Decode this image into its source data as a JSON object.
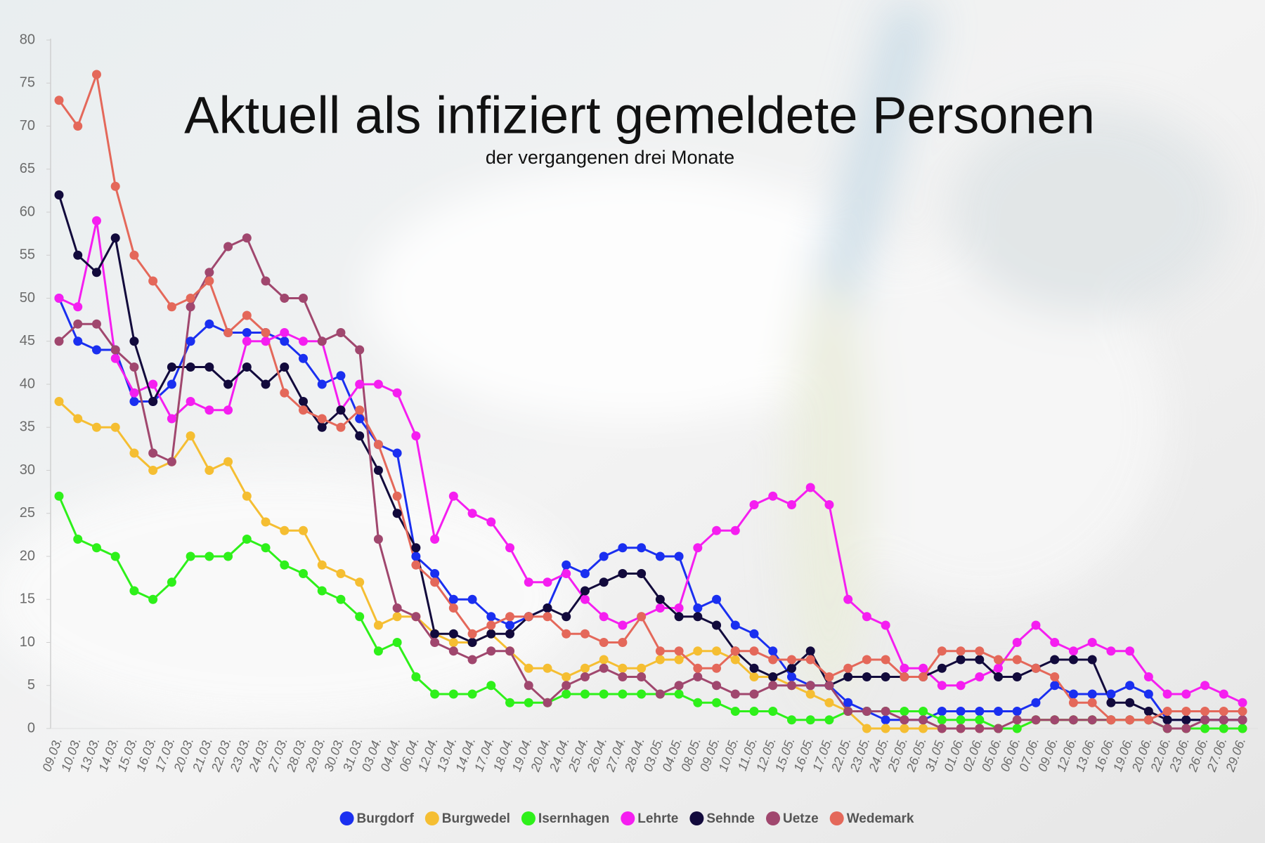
{
  "chart_data": {
    "type": "line",
    "title": "Aktuell als infiziert gemeldete Personen",
    "subtitle": "der vergangenen drei Monate",
    "categories": [
      "09.03.",
      "10.03.",
      "13.03.",
      "14.03.",
      "15.03.",
      "16.03.",
      "17.03.",
      "20.03.",
      "21.03.",
      "22.03.",
      "23.03.",
      "24.03.",
      "27.03.",
      "28.03.",
      "29.03.",
      "30.03.",
      "31.03.",
      "03.04.",
      "04.04.",
      "06.04.",
      "12.04.",
      "13.04.",
      "14.04.",
      "17.04.",
      "18.04.",
      "19.04.",
      "20.04.",
      "24.04.",
      "25.04.",
      "26.04.",
      "27.04.",
      "28.04.",
      "03.05.",
      "04.05.",
      "08.05.",
      "09.05.",
      "10.05.",
      "11.05.",
      "12.05.",
      "15.05.",
      "16.05.",
      "17.05.",
      "22.05.",
      "23.05.",
      "24.05.",
      "25.05.",
      "26.05.",
      "31.05.",
      "01.06.",
      "02.06.",
      "05.06.",
      "06.06.",
      "07.06.",
      "09.06.",
      "12.06.",
      "13.06.",
      "16.06.",
      "19.06.",
      "20.06.",
      "22.06.",
      "23.06.",
      "26.06.",
      "27.06.",
      "29.06."
    ],
    "series": [
      {
        "name": "Burgdorf",
        "color": "#1a2ff0",
        "values": [
          50,
          45,
          44,
          44,
          38,
          38,
          40,
          45,
          47,
          46,
          46,
          46,
          45,
          43,
          40,
          41,
          36,
          33,
          32,
          20,
          18,
          15,
          15,
          13,
          12,
          13,
          14,
          19,
          18,
          20,
          21,
          21,
          20,
          20,
          14,
          15,
          12,
          11,
          9,
          6,
          5,
          5,
          3,
          2,
          1,
          1,
          1,
          2,
          2,
          2,
          2,
          2,
          3,
          5,
          4,
          4,
          4,
          5,
          4,
          1,
          1,
          1,
          1,
          1
        ]
      },
      {
        "name": "Burgwedel",
        "color": "#f5be32",
        "values": [
          38,
          36,
          35,
          35,
          32,
          30,
          31,
          34,
          30,
          31,
          27,
          24,
          23,
          23,
          19,
          18,
          17,
          12,
          13,
          13,
          11,
          10,
          10,
          11,
          9,
          7,
          7,
          6,
          7,
          8,
          7,
          7,
          8,
          8,
          9,
          9,
          8,
          6,
          6,
          5,
          4,
          3,
          2,
          0,
          0,
          0,
          0,
          0,
          0,
          0,
          0,
          0,
          1,
          1,
          1,
          1,
          1,
          1,
          1,
          0,
          0,
          0,
          0,
          0
        ]
      },
      {
        "name": "Isernhagen",
        "color": "#2ef01a",
        "values": [
          27,
          22,
          21,
          20,
          16,
          15,
          17,
          20,
          20,
          20,
          22,
          21,
          19,
          18,
          16,
          15,
          13,
          9,
          10,
          6,
          4,
          4,
          4,
          5,
          3,
          3,
          3,
          4,
          4,
          4,
          4,
          4,
          4,
          4,
          3,
          3,
          2,
          2,
          2,
          1,
          1,
          1,
          2,
          2,
          2,
          2,
          2,
          1,
          1,
          1,
          0,
          0,
          1,
          1,
          1,
          1,
          1,
          1,
          1,
          0,
          0,
          0,
          0,
          0
        ]
      },
      {
        "name": "Lehrte",
        "color": "#f51ef0",
        "values": [
          50,
          49,
          59,
          43,
          39,
          40,
          36,
          38,
          37,
          37,
          45,
          45,
          46,
          45,
          45,
          37,
          40,
          40,
          39,
          34,
          22,
          27,
          25,
          24,
          21,
          17,
          17,
          18,
          15,
          13,
          12,
          13,
          14,
          14,
          21,
          23,
          23,
          26,
          27,
          26,
          28,
          26,
          15,
          13,
          12,
          7,
          7,
          5,
          5,
          6,
          7,
          10,
          12,
          10,
          9,
          10,
          9,
          9,
          6,
          4,
          4,
          5,
          4,
          3
        ]
      },
      {
        "name": "Sehnde",
        "color": "#120a3c",
        "values": [
          62,
          55,
          53,
          57,
          45,
          38,
          42,
          42,
          42,
          40,
          42,
          40,
          42,
          38,
          35,
          37,
          34,
          30,
          25,
          21,
          11,
          11,
          10,
          11,
          11,
          13,
          14,
          13,
          16,
          17,
          18,
          18,
          15,
          13,
          13,
          12,
          9,
          7,
          6,
          7,
          9,
          5,
          6,
          6,
          6,
          6,
          6,
          7,
          8,
          8,
          6,
          6,
          7,
          8,
          8,
          8,
          3,
          3,
          2,
          1,
          1,
          1,
          1,
          1
        ]
      },
      {
        "name": "Uetze",
        "color": "#a0476e",
        "values": [
          45,
          47,
          47,
          44,
          42,
          32,
          31,
          49,
          53,
          56,
          57,
          52,
          50,
          50,
          45,
          46,
          44,
          22,
          14,
          13,
          10,
          9,
          8,
          9,
          9,
          5,
          3,
          5,
          6,
          7,
          6,
          6,
          4,
          5,
          6,
          5,
          4,
          4,
          5,
          5,
          5,
          5,
          2,
          2,
          2,
          1,
          1,
          0,
          0,
          0,
          0,
          1,
          1,
          1,
          1,
          1,
          1,
          1,
          1,
          0,
          0,
          1,
          1,
          1
        ]
      },
      {
        "name": "Wedemark",
        "color": "#e4685a",
        "values": [
          73,
          70,
          76,
          63,
          55,
          52,
          49,
          50,
          52,
          46,
          48,
          46,
          39,
          37,
          36,
          35,
          37,
          33,
          27,
          19,
          17,
          14,
          11,
          12,
          13,
          13,
          13,
          11,
          11,
          10,
          10,
          13,
          9,
          9,
          7,
          7,
          9,
          9,
          8,
          8,
          8,
          6,
          7,
          8,
          8,
          6,
          6,
          9,
          9,
          9,
          8,
          8,
          7,
          6,
          3,
          3,
          1,
          1,
          1,
          2,
          2,
          2,
          2,
          2
        ]
      }
    ],
    "ylim": [
      0,
      80
    ],
    "yticks": [
      0,
      5,
      10,
      15,
      20,
      25,
      30,
      35,
      40,
      45,
      50,
      55,
      60,
      65,
      70,
      75,
      80
    ],
    "grid": false
  }
}
